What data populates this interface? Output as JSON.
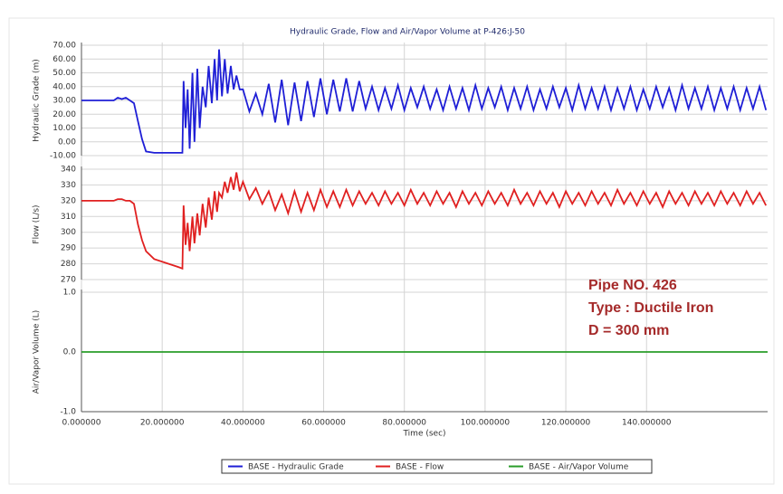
{
  "chart_data": [
    {
      "type": "line",
      "title": "Hydraulic Grade, Flow and Air/Vapor Volume at P-426:J-50",
      "y_label": "Hydraulic Grade (m)",
      "grid": true,
      "xlim": [
        0,
        170
      ],
      "ylim": [
        -10,
        70
      ],
      "yticks": [
        {
          "value": -10,
          "label": "-10.00"
        },
        {
          "value": 0,
          "label": "0.00"
        },
        {
          "value": 10,
          "label": "10.00"
        },
        {
          "value": 20,
          "label": "20.00"
        },
        {
          "value": 30,
          "label": "30.00"
        },
        {
          "value": 40,
          "label": "40.00"
        },
        {
          "value": 50,
          "label": "50.00"
        },
        {
          "value": 60,
          "label": "60.00"
        },
        {
          "value": 70,
          "label": "70.00"
        }
      ],
      "x": [
        0,
        8,
        9,
        10,
        11,
        12,
        13,
        14,
        15,
        16,
        18,
        24,
        25,
        25.3,
        25.8,
        26.3,
        26.8,
        27.5,
        28,
        28.7,
        29.3,
        30,
        30.8,
        31.5,
        32.3,
        33,
        33.6,
        34.1,
        34.8,
        35.5,
        36.2,
        37,
        37.7,
        38.4,
        39.2,
        40,
        41.6,
        43.2,
        44.8,
        46.4,
        48,
        49.6,
        51.2,
        52.8,
        54.4,
        56,
        57.6,
        59.2,
        60.8,
        62.4,
        64,
        65.6,
        67.2,
        68.8,
        70.4,
        72,
        73.6,
        75.2,
        76.8,
        78.4,
        80,
        81.6,
        83.2,
        84.8,
        86.4,
        88,
        89.6,
        91.2,
        92.8,
        94.4,
        96,
        97.6,
        99.2,
        100.8,
        102.4,
        104,
        105.6,
        107.2,
        108.8,
        110.4,
        112,
        113.6,
        115.2,
        116.8,
        118.4,
        120,
        121.6,
        123.2,
        124.8,
        126.4,
        128,
        129.6,
        131.2,
        132.8,
        134.4,
        136,
        137.6,
        139.2,
        140.8,
        142.4,
        144,
        145.6,
        147.2,
        148.8,
        150.4,
        152,
        153.6,
        155.2,
        156.8,
        158.4,
        160,
        161.6,
        163.2,
        164.8,
        166.4,
        168,
        169.6
      ],
      "series": [
        {
          "name": "BASE - Hydraulic Grade",
          "color": "#1f1fd6",
          "values": [
            30,
            30,
            32,
            31,
            32,
            30,
            28,
            15,
            2,
            -7,
            -8,
            -8,
            -8,
            44,
            10,
            38,
            -5,
            50,
            0,
            53,
            10,
            40,
            25,
            55,
            28,
            60,
            30,
            67,
            33,
            60,
            35,
            55,
            38,
            48,
            38,
            38,
            22,
            35,
            20,
            42,
            14,
            45,
            12,
            43,
            15,
            44,
            18,
            46,
            20,
            45,
            22,
            46,
            22,
            44,
            24,
            40,
            23,
            39,
            24,
            41,
            23,
            39,
            25,
            40,
            24,
            38,
            23,
            40,
            24,
            39,
            23,
            41,
            24,
            39,
            25,
            40,
            23,
            39,
            24,
            40,
            23,
            38,
            24,
            40,
            25,
            39,
            23,
            41,
            24,
            39,
            24,
            40,
            23,
            39,
            24,
            40,
            23,
            38,
            24,
            40,
            25,
            39,
            23,
            41,
            24,
            39,
            24,
            40,
            23,
            39,
            24,
            40,
            23,
            39,
            24,
            40,
            23
          ]
        }
      ]
    },
    {
      "type": "line",
      "y_label": "Flow (L/s)",
      "grid": true,
      "xlim": [
        0,
        170
      ],
      "ylim": [
        270,
        340
      ],
      "yticks": [
        270,
        280,
        290,
        300,
        310,
        320,
        330,
        340
      ],
      "annotations": [
        "Pipe NO. 426",
        "Type : Ductile Iron",
        "D = 300 mm"
      ],
      "x": [
        0,
        8,
        9,
        10,
        11,
        12,
        13,
        14,
        15,
        16,
        18,
        24,
        25,
        25.3,
        25.8,
        26.3,
        26.8,
        27.5,
        28,
        28.7,
        29.3,
        30,
        30.8,
        31.5,
        32.3,
        33,
        33.6,
        34.1,
        34.8,
        35.5,
        36.2,
        37,
        37.7,
        38.4,
        39.2,
        40,
        41.6,
        43.2,
        44.8,
        46.4,
        48,
        49.6,
        51.2,
        52.8,
        54.4,
        56,
        57.6,
        59.2,
        60.8,
        62.4,
        64,
        65.6,
        67.2,
        68.8,
        70.4,
        72,
        73.6,
        75.2,
        76.8,
        78.4,
        80,
        81.6,
        83.2,
        84.8,
        86.4,
        88,
        89.6,
        91.2,
        92.8,
        94.4,
        96,
        97.6,
        99.2,
        100.8,
        102.4,
        104,
        105.6,
        107.2,
        108.8,
        110.4,
        112,
        113.6,
        115.2,
        116.8,
        118.4,
        120,
        121.6,
        123.2,
        124.8,
        126.4,
        128,
        129.6,
        131.2,
        132.8,
        134.4,
        136,
        137.6,
        139.2,
        140.8,
        142.4,
        144,
        145.6,
        147.2,
        148.8,
        150.4,
        152,
        153.6,
        155.2,
        156.8,
        158.4,
        160,
        161.6,
        163.2,
        164.8,
        166.4,
        168,
        169.6
      ],
      "series": [
        {
          "name": "BASE - Flow",
          "color": "#e02020",
          "values": [
            320,
            320,
            321,
            321,
            320,
            320,
            318,
            305,
            295,
            288,
            283,
            278,
            277,
            317,
            292,
            306,
            288,
            310,
            293,
            312,
            298,
            318,
            303,
            322,
            308,
            326,
            313,
            325,
            322,
            332,
            325,
            335,
            327,
            338,
            326,
            332,
            321,
            328,
            318,
            326,
            314,
            324,
            312,
            326,
            313,
            325,
            314,
            327,
            316,
            326,
            316,
            327,
            317,
            326,
            318,
            325,
            317,
            326,
            318,
            325,
            317,
            327,
            318,
            325,
            317,
            326,
            318,
            325,
            316,
            326,
            318,
            325,
            317,
            326,
            318,
            325,
            317,
            327,
            318,
            325,
            317,
            326,
            318,
            325,
            316,
            326,
            318,
            325,
            317,
            326,
            318,
            325,
            317,
            327,
            318,
            325,
            317,
            326,
            318,
            325,
            316,
            326,
            318,
            325,
            317,
            326,
            318,
            325,
            317,
            326,
            318,
            325,
            317,
            326,
            318,
            325,
            317
          ]
        }
      ]
    },
    {
      "type": "line",
      "y_label": "Air/Vapor Volume (L)",
      "x_label": "Time (sec)",
      "grid": true,
      "xlim": [
        0,
        170
      ],
      "ylim": [
        -1,
        1
      ],
      "yticks": [
        {
          "value": -1,
          "label": "-1.0"
        },
        {
          "value": 0,
          "label": "0.0"
        },
        {
          "value": 1,
          "label": "1.0"
        }
      ],
      "xticks": [
        {
          "value": 0,
          "label": "0.000000"
        },
        {
          "value": 20,
          "label": "20.000000"
        },
        {
          "value": 40,
          "label": "40.000000"
        },
        {
          "value": 60,
          "label": "60.000000"
        },
        {
          "value": 80,
          "label": "80.000000"
        },
        {
          "value": 100,
          "label": "100.000000"
        },
        {
          "value": 120,
          "label": "120.000000"
        },
        {
          "value": 140,
          "label": "140.000000"
        }
      ],
      "x": [
        0,
        170
      ],
      "series": [
        {
          "name": "BASE - Air/Vapor Volume",
          "color": "#2a9d2a",
          "values": [
            0,
            0
          ]
        }
      ]
    }
  ]
}
